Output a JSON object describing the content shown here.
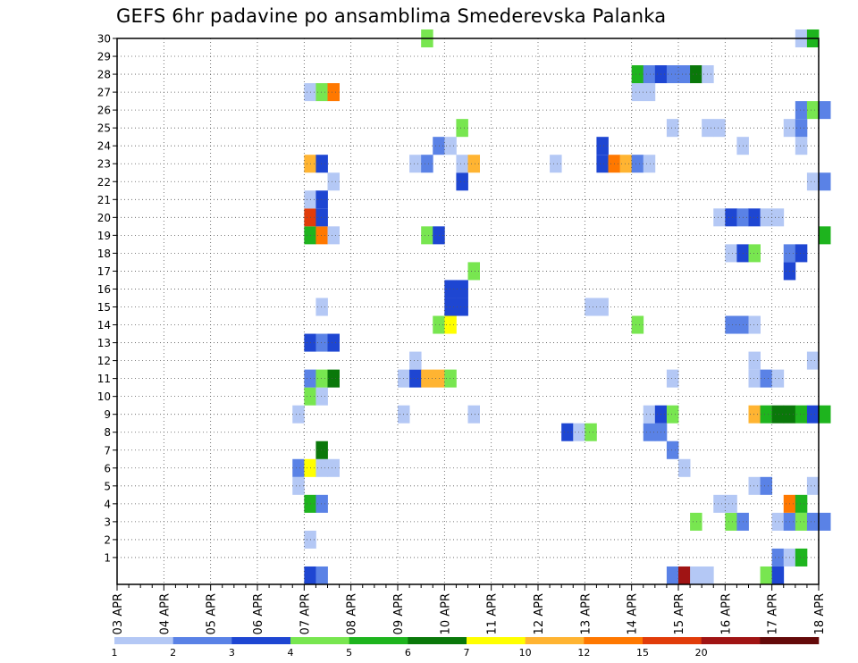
{
  "chart_data": {
    "type": "heatmap",
    "title": "GEFS 6hr padavine po ansamblima Smederevska Palanka",
    "x_tick_labels": [
      "03 APR",
      "04 APR",
      "05 APR",
      "06 APR",
      "07 APR",
      "08 APR",
      "09 APR",
      "10 APR",
      "11 APR",
      "12 APR",
      "13 APR",
      "14 APR",
      "15 APR",
      "16 APR",
      "17 APR",
      "18 APR"
    ],
    "x_step_hours": 6,
    "y_tick_labels": [
      1,
      2,
      3,
      4,
      5,
      6,
      7,
      8,
      9,
      10,
      11,
      12,
      13,
      14,
      15,
      16,
      17,
      18,
      19,
      20,
      21,
      22,
      23,
      24,
      25,
      26,
      27,
      28,
      29,
      30
    ],
    "ylim": [
      0,
      30
    ],
    "grid": true,
    "colorbar": {
      "labels": [
        "1",
        "2",
        "3",
        "4",
        "5",
        "6",
        "7",
        "10",
        "12",
        "15",
        "20"
      ],
      "colors": [
        "#b4c8f5",
        "#5a82e6",
        "#1e46d2",
        "#78e650",
        "#1eb41e",
        "#0a780a",
        "#ffff00",
        "#ffb432",
        "#ff7800",
        "#e13c0a",
        "#a01414",
        "#640a0a"
      ]
    },
    "color_key": {
      "a": "#b4c8f5",
      "b": "#5a82e6",
      "c": "#1e46d2",
      "d": "#78e650",
      "e": "#1eb41e",
      "f": "#0a780a",
      "g": "#ffff00",
      "h": "#ffb432",
      "i": "#ff7800",
      "j": "#e13c0a",
      "k": "#a01414"
    },
    "cells": [
      [
        0,
        16,
        "c"
      ],
      [
        0,
        17,
        "b"
      ],
      [
        0,
        47,
        "b"
      ],
      [
        0,
        48,
        "k"
      ],
      [
        0,
        49,
        "a"
      ],
      [
        0,
        50,
        "a"
      ],
      [
        0,
        55,
        "d"
      ],
      [
        0,
        56,
        "c"
      ],
      [
        1,
        56,
        "b"
      ],
      [
        1,
        57,
        "a"
      ],
      [
        1,
        58,
        "e"
      ],
      [
        2,
        16,
        "a"
      ],
      [
        3,
        49,
        "d"
      ],
      [
        3,
        52,
        "d"
      ],
      [
        3,
        53,
        "b"
      ],
      [
        3,
        56,
        "a"
      ],
      [
        3,
        57,
        "b"
      ],
      [
        3,
        58,
        "d"
      ],
      [
        3,
        59,
        "b"
      ],
      [
        3,
        60,
        "b"
      ],
      [
        4,
        16,
        "e"
      ],
      [
        4,
        17,
        "b"
      ],
      [
        4,
        51,
        "a"
      ],
      [
        4,
        52,
        "a"
      ],
      [
        4,
        57,
        "i"
      ],
      [
        4,
        58,
        "e"
      ],
      [
        5,
        15,
        "a"
      ],
      [
        5,
        54,
        "a"
      ],
      [
        5,
        55,
        "b"
      ],
      [
        5,
        59,
        "a"
      ],
      [
        6,
        15,
        "b"
      ],
      [
        6,
        16,
        "g"
      ],
      [
        6,
        17,
        "a"
      ],
      [
        6,
        18,
        "a"
      ],
      [
        6,
        48,
        "a"
      ],
      [
        7,
        17,
        "f"
      ],
      [
        7,
        47,
        "b"
      ],
      [
        8,
        38,
        "c"
      ],
      [
        8,
        39,
        "a"
      ],
      [
        8,
        40,
        "d"
      ],
      [
        8,
        45,
        "b"
      ],
      [
        8,
        46,
        "b"
      ],
      [
        9,
        15,
        "a"
      ],
      [
        9,
        24,
        "a"
      ],
      [
        9,
        30,
        "a"
      ],
      [
        9,
        45,
        "a"
      ],
      [
        9,
        46,
        "c"
      ],
      [
        9,
        47,
        "d"
      ],
      [
        9,
        54,
        "h"
      ],
      [
        9,
        55,
        "e"
      ],
      [
        9,
        56,
        "f"
      ],
      [
        9,
        57,
        "f"
      ],
      [
        9,
        58,
        "e"
      ],
      [
        9,
        59,
        "c"
      ],
      [
        9,
        60,
        "e"
      ],
      [
        10,
        16,
        "d"
      ],
      [
        10,
        17,
        "a"
      ],
      [
        11,
        16,
        "b"
      ],
      [
        11,
        17,
        "d"
      ],
      [
        11,
        18,
        "f"
      ],
      [
        11,
        24,
        "a"
      ],
      [
        11,
        25,
        "c"
      ],
      [
        11,
        26,
        "h"
      ],
      [
        11,
        27,
        "h"
      ],
      [
        11,
        28,
        "d"
      ],
      [
        11,
        47,
        "a"
      ],
      [
        11,
        54,
        "a"
      ],
      [
        11,
        55,
        "b"
      ],
      [
        11,
        56,
        "a"
      ],
      [
        12,
        25,
        "a"
      ],
      [
        12,
        54,
        "a"
      ],
      [
        12,
        59,
        "a"
      ],
      [
        13,
        16,
        "c"
      ],
      [
        13,
        17,
        "b"
      ],
      [
        13,
        18,
        "c"
      ],
      [
        14,
        27,
        "d"
      ],
      [
        14,
        28,
        "g"
      ],
      [
        14,
        44,
        "d"
      ],
      [
        14,
        52,
        "b"
      ],
      [
        14,
        53,
        "b"
      ],
      [
        14,
        54,
        "a"
      ],
      [
        15,
        17,
        "a"
      ],
      [
        15,
        28,
        "c"
      ],
      [
        15,
        29,
        "c"
      ],
      [
        15,
        40,
        "a"
      ],
      [
        15,
        41,
        "a"
      ],
      [
        16,
        28,
        "c"
      ],
      [
        16,
        29,
        "c"
      ],
      [
        17,
        30,
        "d"
      ],
      [
        17,
        57,
        "c"
      ],
      [
        18,
        52,
        "a"
      ],
      [
        18,
        53,
        "c"
      ],
      [
        18,
        54,
        "d"
      ],
      [
        18,
        57,
        "b"
      ],
      [
        18,
        58,
        "c"
      ],
      [
        19,
        16,
        "e"
      ],
      [
        19,
        17,
        "i"
      ],
      [
        19,
        18,
        "a"
      ],
      [
        19,
        26,
        "d"
      ],
      [
        19,
        27,
        "c"
      ],
      [
        19,
        60,
        "e"
      ],
      [
        20,
        16,
        "j"
      ],
      [
        20,
        17,
        "c"
      ],
      [
        20,
        51,
        "a"
      ],
      [
        20,
        52,
        "c"
      ],
      [
        20,
        53,
        "b"
      ],
      [
        20,
        54,
        "c"
      ],
      [
        20,
        55,
        "a"
      ],
      [
        20,
        56,
        "a"
      ],
      [
        21,
        16,
        "a"
      ],
      [
        21,
        17,
        "c"
      ],
      [
        22,
        18,
        "a"
      ],
      [
        22,
        29,
        "c"
      ],
      [
        22,
        59,
        "a"
      ],
      [
        22,
        60,
        "b"
      ],
      [
        23,
        16,
        "h"
      ],
      [
        23,
        17,
        "c"
      ],
      [
        23,
        25,
        "a"
      ],
      [
        23,
        26,
        "b"
      ],
      [
        23,
        29,
        "a"
      ],
      [
        23,
        30,
        "h"
      ],
      [
        23,
        37,
        "a"
      ],
      [
        23,
        41,
        "c"
      ],
      [
        23,
        42,
        "i"
      ],
      [
        23,
        43,
        "h"
      ],
      [
        23,
        44,
        "b"
      ],
      [
        23,
        45,
        "a"
      ],
      [
        24,
        27,
        "b"
      ],
      [
        24,
        28,
        "a"
      ],
      [
        24,
        41,
        "c"
      ],
      [
        24,
        53,
        "a"
      ],
      [
        24,
        58,
        "a"
      ],
      [
        25,
        29,
        "d"
      ],
      [
        25,
        47,
        "a"
      ],
      [
        25,
        50,
        "a"
      ],
      [
        25,
        51,
        "a"
      ],
      [
        25,
        57,
        "a"
      ],
      [
        25,
        58,
        "b"
      ],
      [
        26,
        58,
        "b"
      ],
      [
        26,
        59,
        "d"
      ],
      [
        26,
        60,
        "b"
      ],
      [
        27,
        16,
        "a"
      ],
      [
        27,
        17,
        "d"
      ],
      [
        27,
        18,
        "i"
      ],
      [
        27,
        44,
        "a"
      ],
      [
        27,
        45,
        "a"
      ],
      [
        28,
        44,
        "e"
      ],
      [
        28,
        45,
        "b"
      ],
      [
        28,
        46,
        "c"
      ],
      [
        28,
        47,
        "b"
      ],
      [
        28,
        48,
        "b"
      ],
      [
        28,
        49,
        "f"
      ],
      [
        28,
        50,
        "a"
      ],
      [
        30,
        26,
        "d"
      ],
      [
        30,
        58,
        "a"
      ],
      [
        30,
        59,
        "e"
      ]
    ]
  }
}
